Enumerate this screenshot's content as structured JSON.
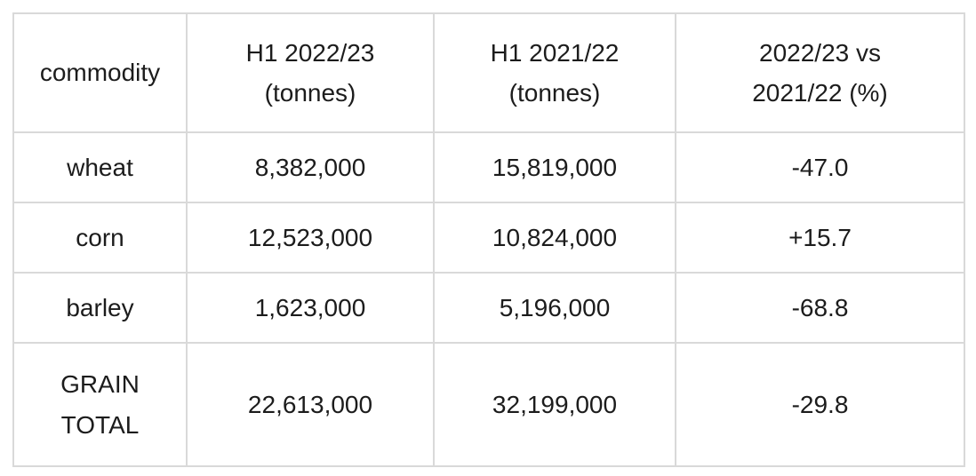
{
  "colors": {
    "border-color": "#d9d9d9",
    "text-color": "#1c1c1c"
  },
  "table": {
    "headers": [
      "commodity",
      "H1 2022/23\n(tonnes)",
      "H1 2021/22\n(tonnes)",
      "2022/23 vs\n2021/22 (%)"
    ],
    "rows": [
      [
        "wheat",
        "8,382,000",
        "15,819,000",
        "-47.0"
      ],
      [
        "corn",
        "12,523,000",
        "10,824,000",
        "+15.7"
      ],
      [
        "barley",
        "1,623,000",
        "5,196,000",
        "-68.8"
      ],
      [
        "GRAIN\nTOTAL",
        "22,613,000",
        "32,199,000",
        "-29.8"
      ]
    ]
  },
  "chart_data": {
    "type": "table",
    "title": "",
    "columns": [
      "commodity",
      "H1 2022/23 (tonnes)",
      "H1 2021/22 (tonnes)",
      "2022/23 vs 2021/22 (%)"
    ],
    "rows": [
      {
        "commodity": "wheat",
        "h1_2022_23_tonnes": 8382000,
        "h1_2021_22_tonnes": 15819000,
        "change_pct": -47.0
      },
      {
        "commodity": "corn",
        "h1_2022_23_tonnes": 12523000,
        "h1_2021_22_tonnes": 10824000,
        "change_pct": 15.7
      },
      {
        "commodity": "barley",
        "h1_2022_23_tonnes": 1623000,
        "h1_2021_22_tonnes": 5196000,
        "change_pct": -68.8
      },
      {
        "commodity": "GRAIN TOTAL",
        "h1_2022_23_tonnes": 22613000,
        "h1_2021_22_tonnes": 32199000,
        "change_pct": -29.8
      }
    ]
  }
}
